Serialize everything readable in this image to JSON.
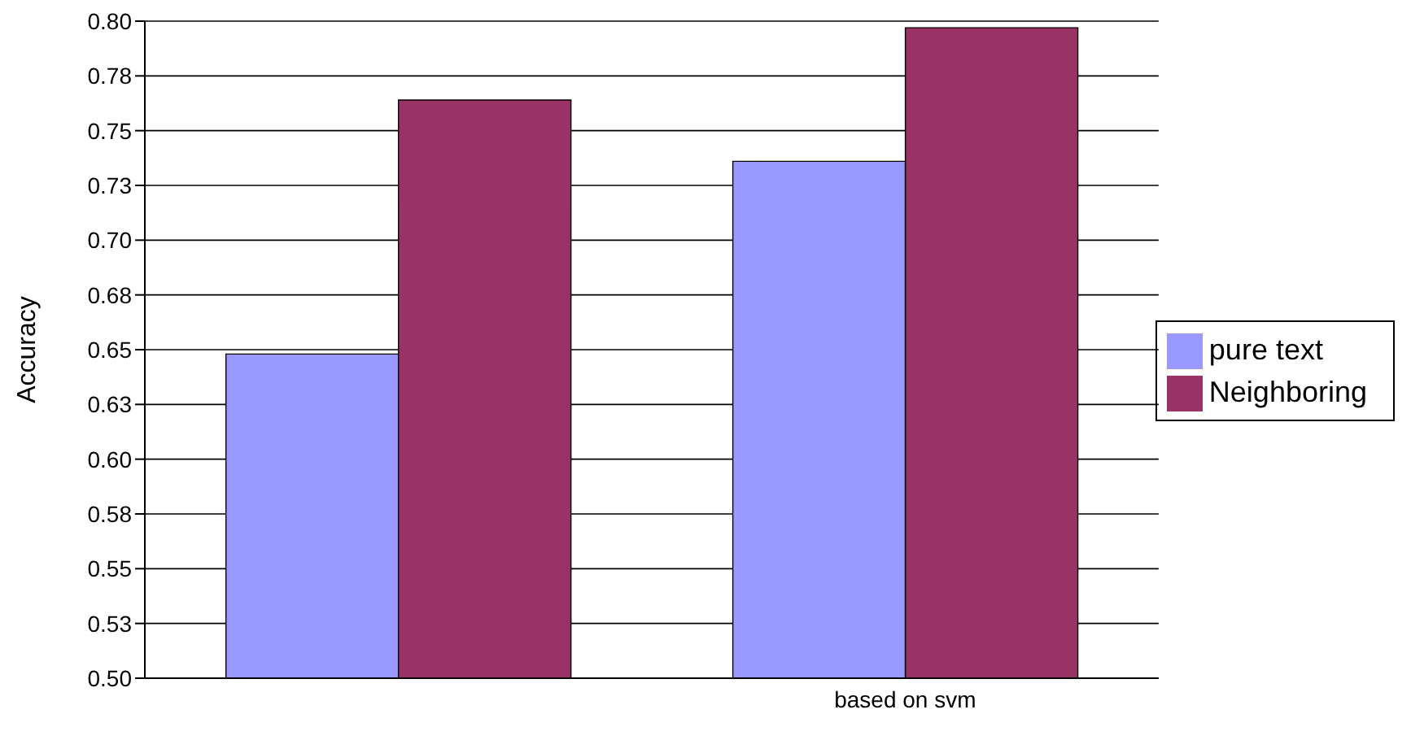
{
  "chart_data": {
    "type": "bar",
    "ylabel": "Accuracy",
    "categories": [
      null,
      "based on svm"
    ],
    "series": [
      {
        "name": "pure text",
        "color": "#9999ff",
        "values": [
          0.648,
          0.736
        ]
      },
      {
        "name": "Neighboring",
        "color": "#993366",
        "values": [
          0.764,
          0.797
        ]
      }
    ],
    "ylim": [
      0.5,
      0.8
    ],
    "yticks": [
      {
        "value": 0.5,
        "label": "0.50"
      },
      {
        "value": 0.525,
        "label": "0.53"
      },
      {
        "value": 0.55,
        "label": "0.55"
      },
      {
        "value": 0.575,
        "label": "0.58"
      },
      {
        "value": 0.6,
        "label": "0.60"
      },
      {
        "value": 0.625,
        "label": "0.63"
      },
      {
        "value": 0.65,
        "label": "0.65"
      },
      {
        "value": 0.675,
        "label": "0.68"
      },
      {
        "value": 0.7,
        "label": "0.70"
      },
      {
        "value": 0.725,
        "label": "0.73"
      },
      {
        "value": 0.75,
        "label": "0.75"
      },
      {
        "value": 0.775,
        "label": "0.78"
      },
      {
        "value": 0.8,
        "label": "0.80"
      }
    ],
    "grid": "y",
    "legend": "right"
  }
}
